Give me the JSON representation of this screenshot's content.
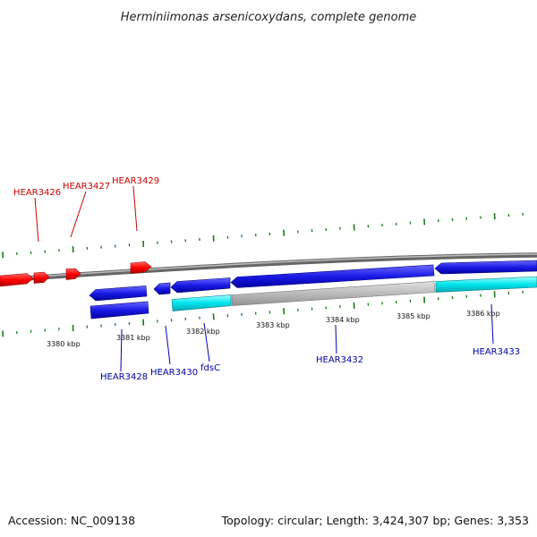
{
  "title": "Herminiimonas arsenicoxydans, complete genome",
  "footer": {
    "accession": "Accession: NC_009138",
    "summary": "Topology: circular; Length: 3,424,307 bp; Genes: 3,353"
  },
  "colors": {
    "forward_gene": "#ff0000",
    "reverse_gene": "#1a1ae6",
    "rna_gene": "#00e5ee",
    "pseudo_gene": "#bbbbbb",
    "tick": "#1a7a1a",
    "backbone": "#888888",
    "label_forward": "#cc0000",
    "label_reverse": "#0000aa"
  },
  "ruler_labels": [
    "3380 kbp",
    "3381 kbp",
    "3382 kbp",
    "3383 kbp",
    "3384 kbp",
    "3385 kbp",
    "3386 kbp"
  ],
  "labels_top": [
    "HEAR3426",
    "HEAR3427",
    "HEAR3429"
  ],
  "labels_bottom": [
    "HEAR3428",
    "HEAR3430",
    "fdsC",
    "HEAR3432",
    "HEAR3433"
  ]
}
